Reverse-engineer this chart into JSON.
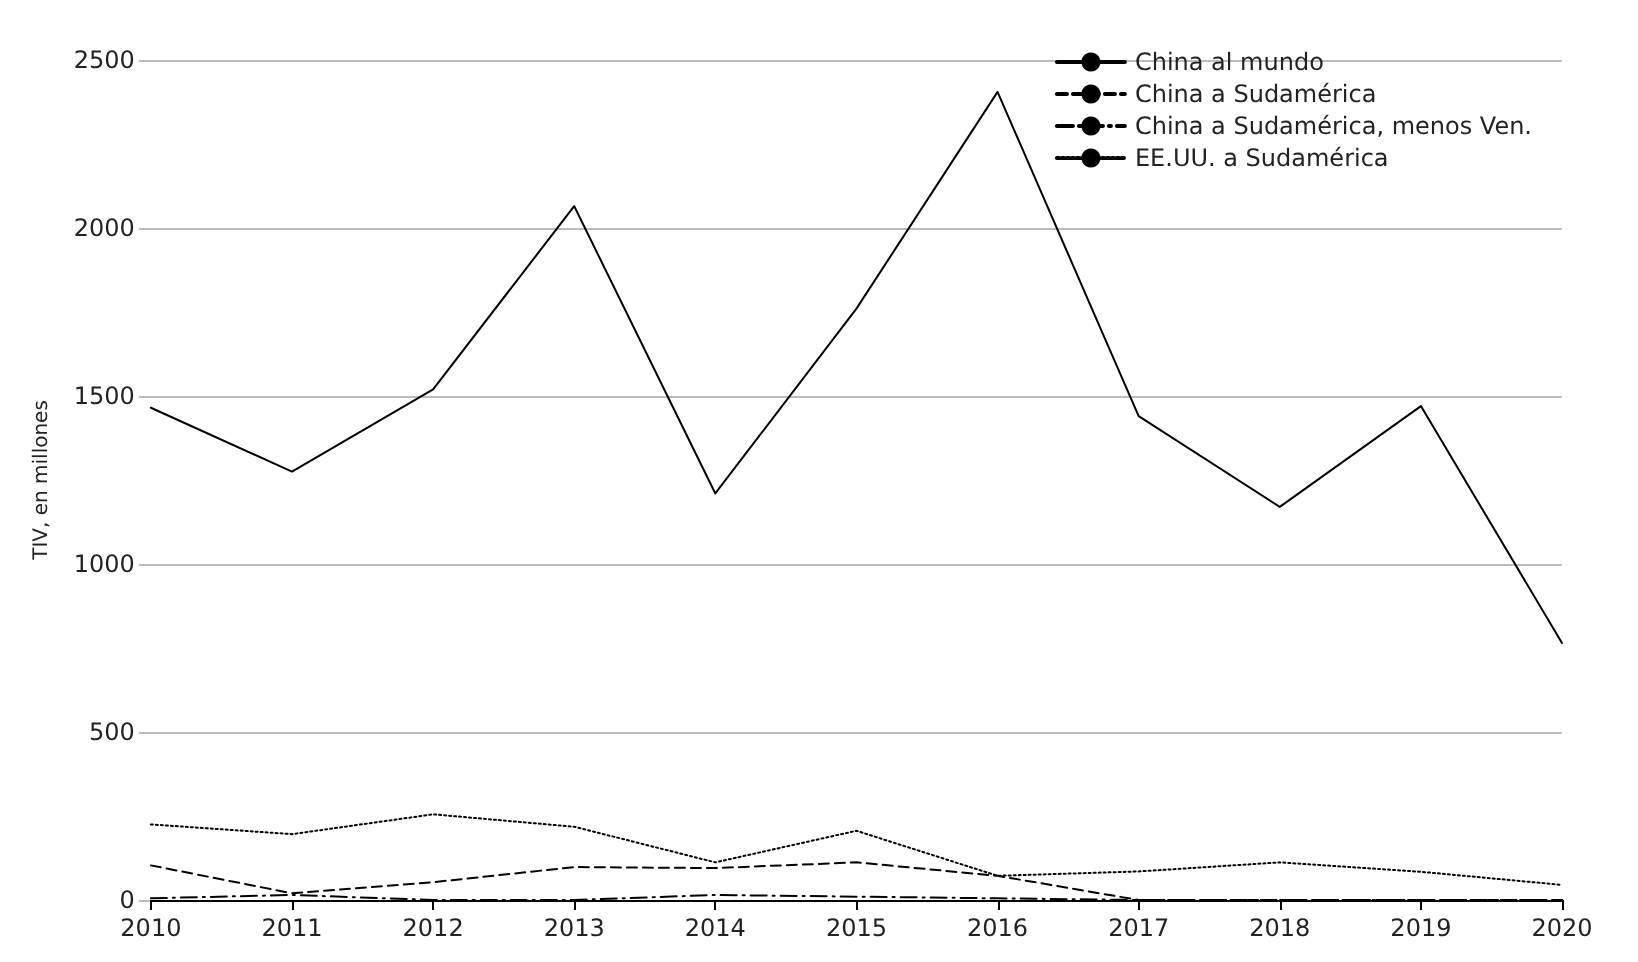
{
  "chart_data": {
    "type": "line",
    "ylabel": "TIV, en millones",
    "categories": [
      "2010",
      "2011",
      "2012",
      "2013",
      "2014",
      "2015",
      "2016",
      "2017",
      "2018",
      "2019",
      "2020"
    ],
    "ylim": [
      0,
      2500
    ],
    "yticks": [
      0,
      500,
      1000,
      1500,
      2000,
      2500
    ],
    "grid": "y",
    "legend": "top right",
    "marker": "none",
    "series": [
      {
        "name": "China al mundo",
        "color": "#000000",
        "line_style": "solid",
        "values": [
          1465,
          1275,
          1520,
          2065,
          1210,
          1760,
          2405,
          1440,
          1170,
          1470,
          765
        ]
      },
      {
        "name": "China a Sudamérica",
        "color": "#000000",
        "line_style": "dashed",
        "values": [
          103,
          20,
          53,
          98,
          95,
          112,
          72,
          0,
          0,
          0,
          0
        ]
      },
      {
        "name": "China a Sudamérica, menos Ven.",
        "color": "#000000",
        "line_style": "dashdot",
        "values": [
          5,
          15,
          0,
          0,
          15,
          10,
          5,
          0,
          0,
          0,
          0
        ]
      },
      {
        "name": "EE.UU. a Sudamérica",
        "color": "#000000",
        "line_style": "dotted",
        "values": [
          225,
          196,
          255,
          218,
          112,
          206,
          72,
          85,
          112,
          84,
          45
        ]
      }
    ]
  }
}
